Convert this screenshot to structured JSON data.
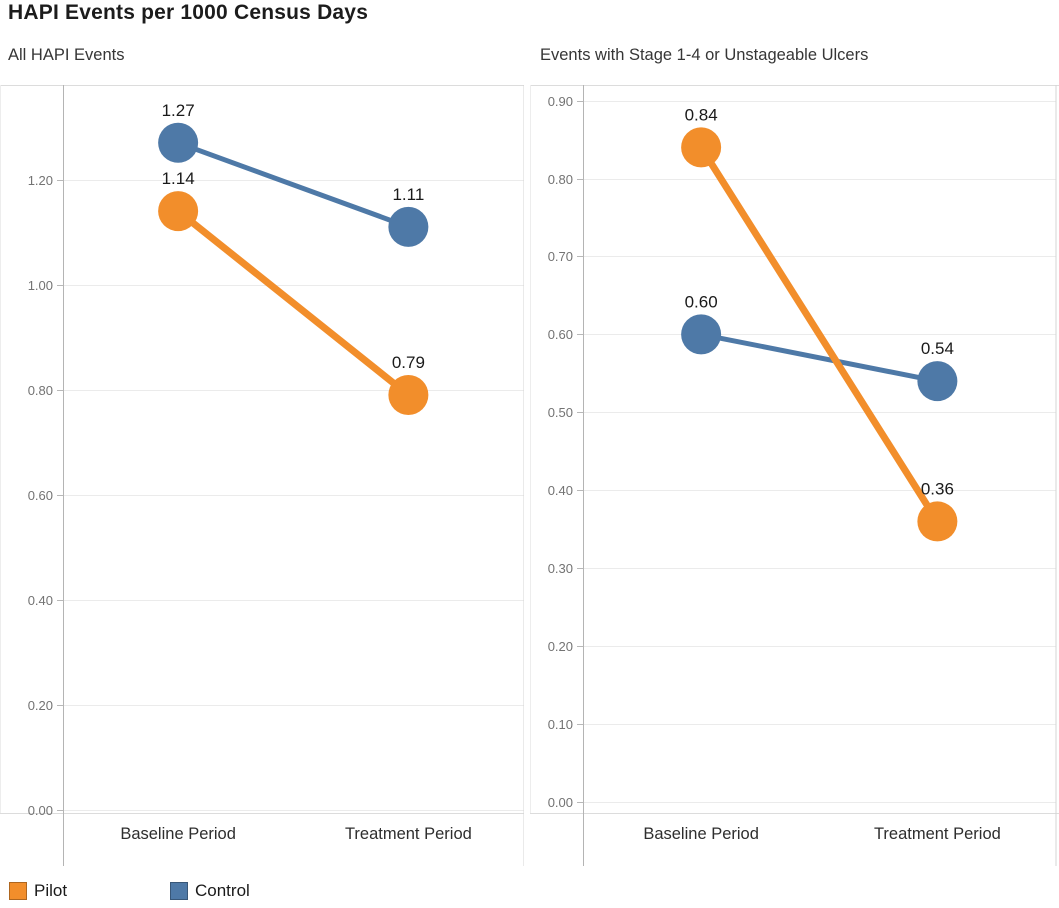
{
  "title": "HAPI Events per 1000 Census Days",
  "legend": {
    "items": [
      {
        "label": "Pilot",
        "color": "#F28E2B"
      },
      {
        "label": "Control",
        "color": "#4E79A7"
      }
    ]
  },
  "colors": {
    "pilot": "#F28E2B",
    "control": "#4E79A7",
    "gridline": "#EBEBEB",
    "axis_line": "#B4B4B4",
    "panel_border": "#DCDCDC",
    "tick_label": "#737373",
    "data_label": "#1A1A1A",
    "category_label": "#2E2E2E"
  },
  "chart_data": [
    {
      "type": "line",
      "title": "All HAPI Events",
      "xlabel": "",
      "ylabel": "",
      "categories": [
        "Baseline Period",
        "Treatment Period"
      ],
      "series": [
        {
          "name": "Pilot",
          "color": "#F28E2B",
          "values": [
            1.14,
            0.79
          ],
          "labels": [
            "1.14",
            "0.79"
          ],
          "line_width": 7
        },
        {
          "name": "Control",
          "color": "#4E79A7",
          "values": [
            1.27,
            1.11
          ],
          "labels": [
            "1.27",
            "1.11"
          ],
          "line_width": 5
        }
      ],
      "ylim": [
        0,
        1.38
      ],
      "yticks": [
        0.0,
        0.2,
        0.4,
        0.6,
        0.8,
        1.0,
        1.2
      ],
      "ytick_labels": [
        "0.00",
        "0.20",
        "0.40",
        "0.60",
        "0.80",
        "1.00",
        "1.20"
      ],
      "grid": true,
      "legend_position": "bottom"
    },
    {
      "type": "line",
      "title": "Events with Stage 1-4 or Unstageable Ulcers",
      "xlabel": "",
      "ylabel": "",
      "categories": [
        "Baseline Period",
        "Treatment Period"
      ],
      "series": [
        {
          "name": "Pilot",
          "color": "#F28E2B",
          "values": [
            0.84,
            0.36
          ],
          "labels": [
            "0.84",
            "0.36"
          ],
          "line_width": 7
        },
        {
          "name": "Control",
          "color": "#4E79A7",
          "values": [
            0.6,
            0.54
          ],
          "labels": [
            "0.60",
            "0.54"
          ],
          "line_width": 5
        }
      ],
      "ylim": [
        0,
        0.92
      ],
      "yticks": [
        0.0,
        0.1,
        0.2,
        0.3,
        0.4,
        0.5,
        0.6,
        0.7,
        0.8,
        0.9
      ],
      "ytick_labels": [
        "0.00",
        "0.10",
        "0.20",
        "0.30",
        "0.40",
        "0.50",
        "0.60",
        "0.70",
        "0.80",
        "0.90"
      ],
      "grid": true,
      "legend_position": "bottom"
    }
  ]
}
